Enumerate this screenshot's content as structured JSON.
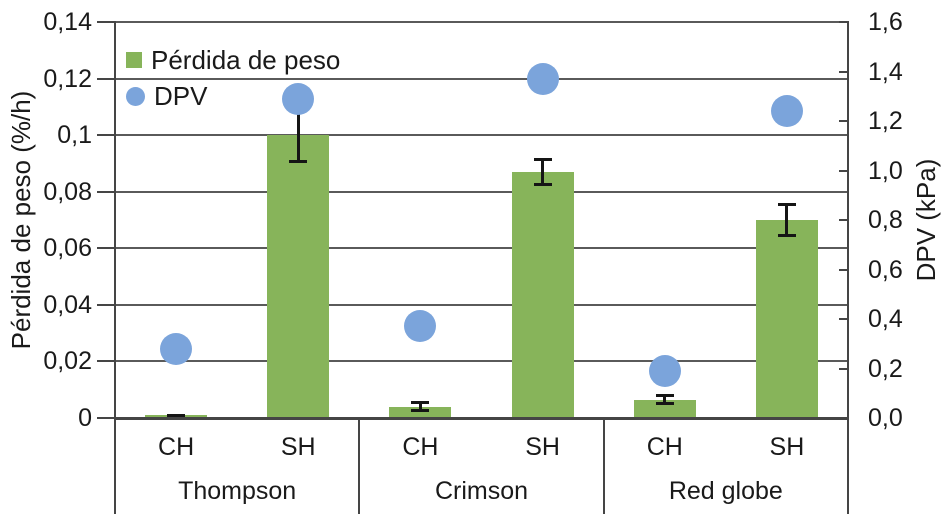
{
  "chart_data": {
    "type": "combo-bar-scatter-dual-axis",
    "grid": "horizontal-on",
    "legend_position": "top-left-inside",
    "groups": [
      {
        "label": "Thompson",
        "conditions": [
          "CH",
          "SH"
        ]
      },
      {
        "label": "Crimson",
        "conditions": [
          "CH",
          "SH"
        ]
      },
      {
        "label": "Red globe",
        "conditions": [
          "CH",
          "SH"
        ]
      }
    ],
    "categories": [
      "Thompson CH",
      "Thompson SH",
      "Crimson CH",
      "Crimson SH",
      "Red globe CH",
      "Red globe SH"
    ],
    "series": [
      {
        "name": "Pérdida de peso",
        "type": "bar",
        "axis": "left",
        "values": [
          0.001,
          0.1,
          0.004,
          0.087,
          0.0065,
          0.07
        ],
        "errors": [
          0.0005,
          0.01,
          0.002,
          0.005,
          0.002,
          0.006
        ]
      },
      {
        "name": "DPV",
        "type": "scatter",
        "axis": "right",
        "values": [
          0.28,
          1.29,
          0.37,
          1.37,
          0.19,
          1.24
        ]
      }
    ],
    "left_axis": {
      "label": "Pérdida de peso (%/h)",
      "min": 0,
      "max": 0.14,
      "tick_step": 0.02,
      "ticks": [
        "0,14",
        "0,12",
        "0,1",
        "0,08",
        "0,06",
        "0,04",
        "0,02",
        "0"
      ]
    },
    "right_axis": {
      "label": "DPV (kPa)",
      "min": 0,
      "max": 1.6,
      "tick_step": 0.2,
      "ticks": [
        "1,6",
        "1,4",
        "1,2",
        "1,0",
        "0,8",
        "0,6",
        "0,4",
        "0,2",
        "0,0"
      ]
    },
    "colors": {
      "bar": "#87B45A",
      "point": "#7BA4DB",
      "gridline": "#5a5a5a",
      "axis": "#454545",
      "error_bar": "#151515",
      "text": "#1a1a1a",
      "background": "#ffffff"
    }
  }
}
